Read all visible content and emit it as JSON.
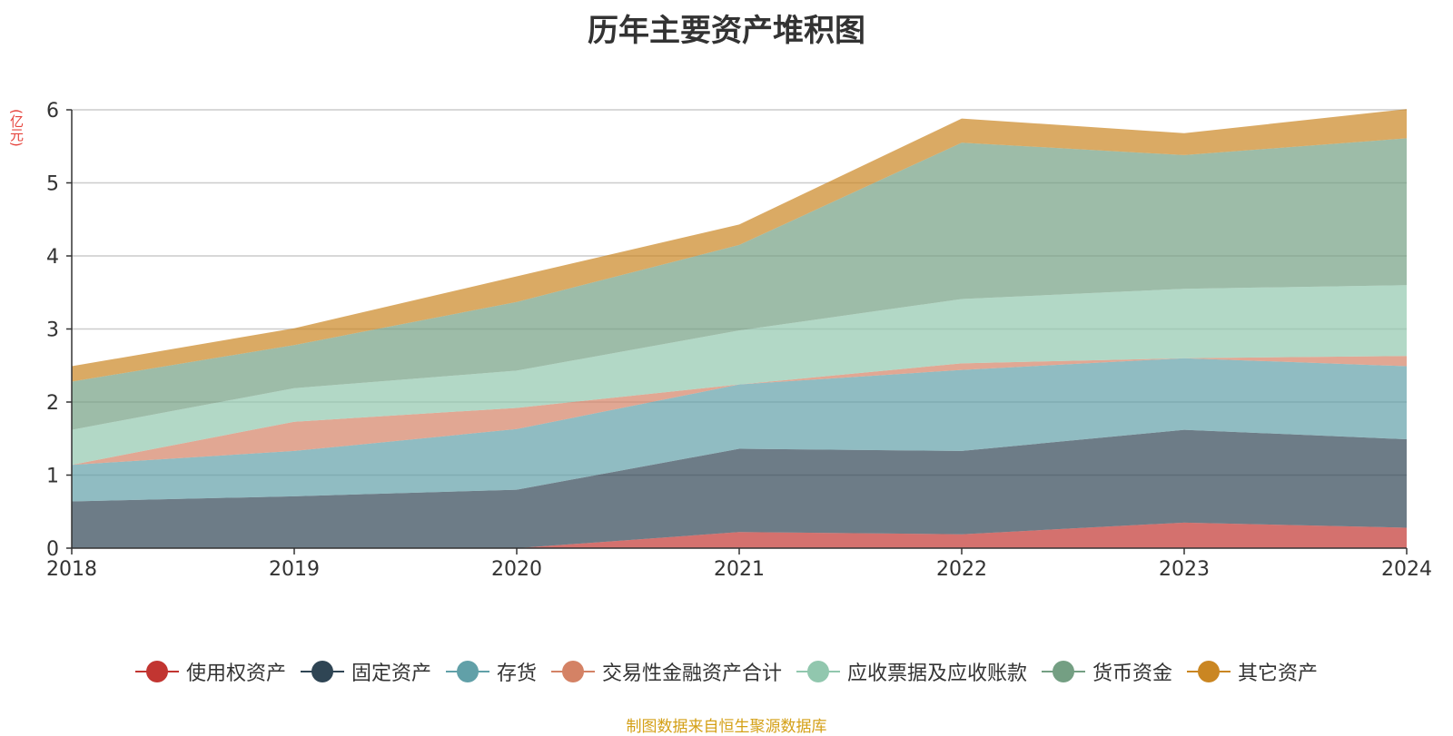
{
  "chart_data": {
    "type": "area",
    "stacked": true,
    "title": "历年主要资产堆积图",
    "ylabel": "(亿元)",
    "xlabel": "",
    "categories": [
      "2018",
      "2019",
      "2020",
      "2021",
      "2022",
      "2023",
      "2024"
    ],
    "ylim": [
      0,
      6
    ],
    "yticks": [
      "0",
      "1",
      "2",
      "3",
      "4",
      "5",
      "6"
    ],
    "grid": true,
    "legend_position": "bottom",
    "series": [
      {
        "name": "使用权资产",
        "color": "#c23531",
        "values": [
          0,
          0,
          0,
          0.22,
          0.19,
          0.35,
          0.28
        ]
      },
      {
        "name": "固定资产",
        "color": "#2f4554",
        "values": [
          0.64,
          0.71,
          0.8,
          1.14,
          1.14,
          1.27,
          1.21
        ]
      },
      {
        "name": "存货",
        "color": "#61a0a8",
        "values": [
          0.5,
          0.62,
          0.83,
          0.88,
          1.11,
          0.98,
          1.0
        ]
      },
      {
        "name": "交易性金融资产合计",
        "color": "#d48265",
        "values": [
          0,
          0.4,
          0.29,
          0,
          0.09,
          0,
          0.14
        ]
      },
      {
        "name": "应收票据及应收账款",
        "color": "#91c7ae",
        "values": [
          0.48,
          0.46,
          0.51,
          0.74,
          0.88,
          0.95,
          0.97
        ]
      },
      {
        "name": "货币资金",
        "color": "#749f83",
        "values": [
          0.66,
          0.59,
          0.94,
          1.17,
          2.14,
          1.83,
          2.01
        ]
      },
      {
        "name": "其它资产",
        "color": "#ca8622",
        "values": [
          0.21,
          0.23,
          0.35,
          0.28,
          0.33,
          0.3,
          0.4
        ]
      }
    ]
  },
  "source_note": "制图数据来自恒生聚源数据库"
}
